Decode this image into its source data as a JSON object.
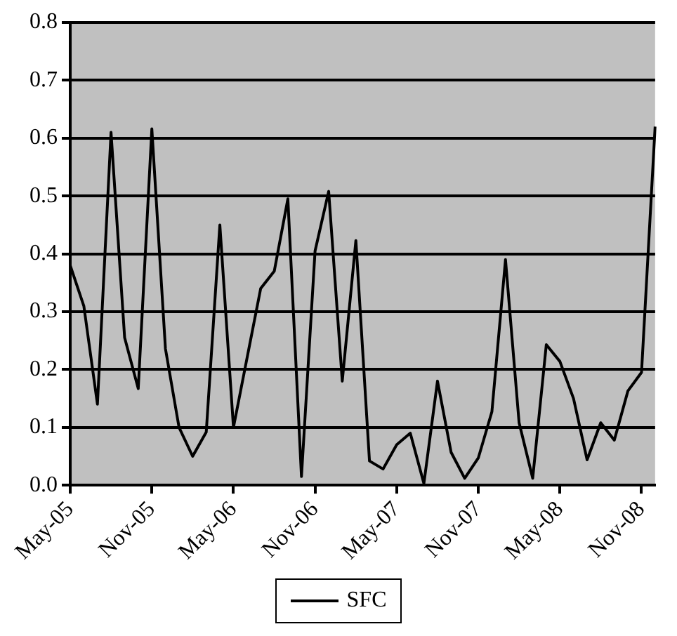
{
  "chart_data": {
    "type": "line",
    "categories": [
      "May-05",
      null,
      null,
      null,
      null,
      null,
      "Nov-05",
      null,
      null,
      null,
      null,
      null,
      "May-06",
      null,
      null,
      null,
      null,
      null,
      "Nov-06",
      null,
      null,
      null,
      null,
      null,
      "May-07",
      null,
      null,
      null,
      null,
      null,
      "Nov-07",
      null,
      null,
      null,
      null,
      null,
      "May-08",
      null,
      null,
      null,
      null,
      null,
      "Nov-08",
      null
    ],
    "series": [
      {
        "name": "SFC",
        "color": "#000000",
        "values": [
          0.38,
          0.31,
          0.14,
          0.61,
          0.255,
          0.167,
          0.616,
          0.236,
          0.1,
          0.05,
          0.092,
          0.45,
          0.1,
          0.22,
          0.34,
          0.37,
          0.495,
          0.015,
          0.405,
          0.508,
          0.18,
          0.423,
          0.042,
          0.028,
          0.07,
          0.09,
          0.003,
          0.18,
          0.057,
          0.012,
          0.047,
          0.127,
          0.39,
          0.108,
          0.012,
          0.243,
          0.214,
          0.15,
          0.044,
          0.108,
          0.078,
          0.163,
          0.195,
          0.62
        ]
      }
    ],
    "ylim": [
      0,
      0.8
    ],
    "yticks": [
      {
        "value": 0,
        "label": "0.0"
      },
      {
        "value": 0.1,
        "label": "0.1"
      },
      {
        "value": 0.2,
        "label": "0.2"
      },
      {
        "value": 0.3,
        "label": "0.3"
      },
      {
        "value": 0.4,
        "label": "0.4"
      },
      {
        "value": 0.5,
        "label": "0.5"
      },
      {
        "value": 0.6,
        "label": "0.6"
      },
      {
        "value": 0.7,
        "label": "0.7"
      },
      {
        "value": 0.8,
        "label": "0.8"
      }
    ],
    "grid": "y",
    "legend": "bottom",
    "marker": "none",
    "line_style": "solid"
  }
}
